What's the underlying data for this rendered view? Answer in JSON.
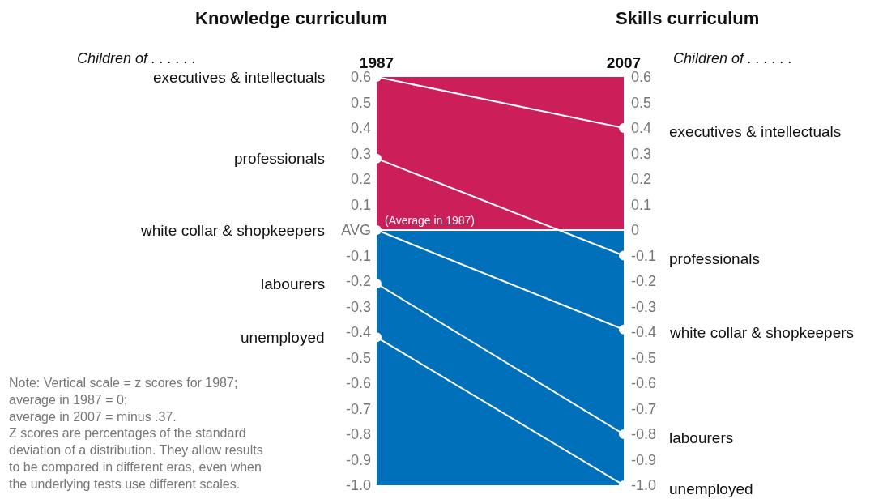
{
  "chart_data": {
    "type": "line",
    "categories": [
      "1987",
      "2007"
    ],
    "series": [
      {
        "name": "executives & intellectuals",
        "color": "#ffffff",
        "values": [
          0.6,
          0.4
        ]
      },
      {
        "name": "professionals",
        "color": "#ffffff",
        "values": [
          0.28,
          -0.1
        ]
      },
      {
        "name": "white collar & shopkeepers",
        "color": "#ffffff",
        "values": [
          0,
          -0.39
        ]
      },
      {
        "name": "labourers",
        "color": "#ffffff",
        "values": [
          -0.21,
          -0.8
        ]
      },
      {
        "name": "unemployed",
        "color": "#ffffff",
        "values": [
          -0.42,
          -1.0
        ]
      }
    ],
    "ylim": [
      -1.0,
      0.6
    ],
    "yticks": [
      0.6,
      0.5,
      0.4,
      0.3,
      0.2,
      0.1,
      {
        "value": 0,
        "label": "AVG"
      },
      -0.1,
      -0.2,
      -0.3,
      -0.4,
      -0.5,
      -0.6,
      -0.7,
      -0.8,
      -0.9,
      {
        "value": -1.0,
        "label": "-1.0"
      }
    ],
    "y2lim": [
      -1.0,
      0.6
    ],
    "y2ticks": [
      0.6,
      0.5,
      0.4,
      0.3,
      0.2,
      0.1,
      0,
      -0.1,
      -0.2,
      -0.3,
      -0.4,
      -0.5,
      -0.6,
      -0.7,
      -0.8,
      -0.9,
      {
        "value": -1.0,
        "label": "-1.0"
      }
    ],
    "bands": [
      {
        "axis": "y",
        "from": 0,
        "to": 0.6,
        "color": "#cc1e59"
      },
      {
        "axis": "y",
        "from": -1.0,
        "to": 0,
        "color": "#0070bb"
      }
    ],
    "ref_lines": [
      {
        "axis": "y",
        "value": 0,
        "label": "(Average in 1987)",
        "color": "#ffffff",
        "line_style": "solid"
      }
    ],
    "annotations": [
      "Knowledge curriculum",
      "Skills curriculum",
      "Children of . . . . . .",
      "Children of . . . . . .",
      "Note: Vertical scale = z scores for 1987;\naverage in 1987 = 0;\naverage in 2007 = minus .37.\nZ scores are percentages of the standard\ndeviation of a distribution. They allow results\nto be compared in different eras, even when\nthe underlying tests use different scales."
    ],
    "grid": false,
    "legend": false,
    "marker": "circle",
    "line_style": "solid"
  }
}
